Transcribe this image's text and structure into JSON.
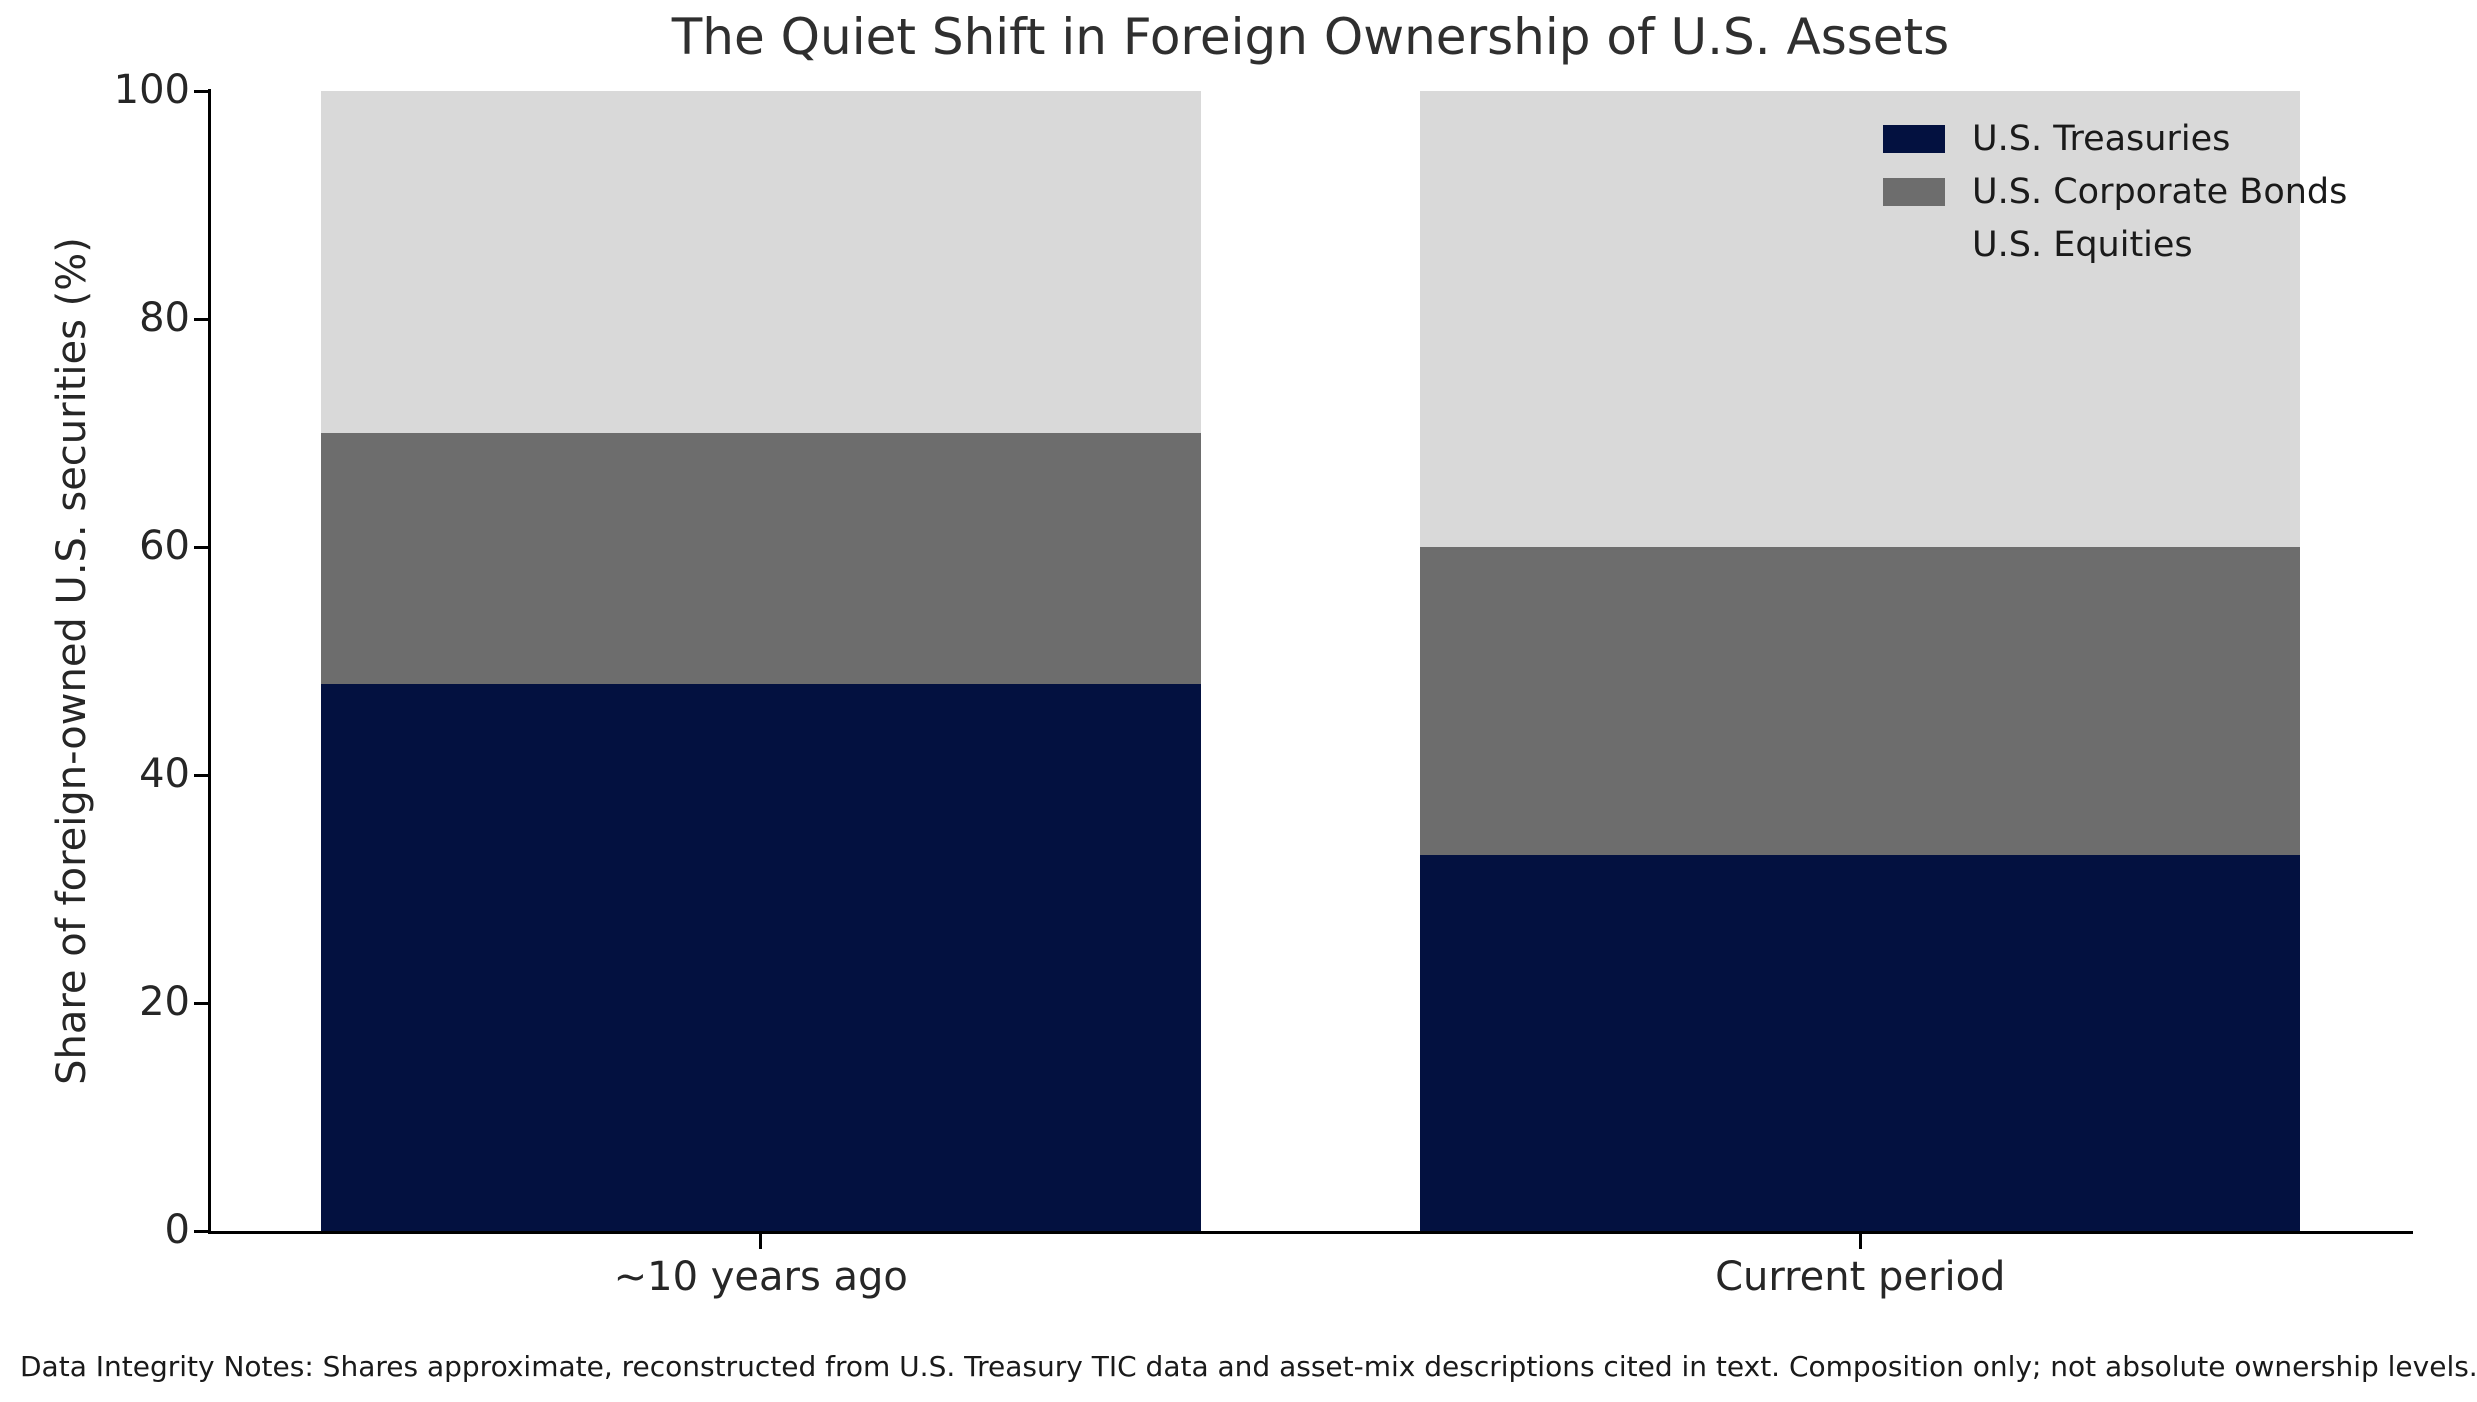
{
  "figure": {
    "footnote": "Data Integrity Notes: Shares approximate, reconstructed from U.S. Treasury TIC data and asset-mix descriptions cited in text. Composition only; not absolute ownership levels."
  },
  "chart_data": {
    "type": "bar",
    "stacked": true,
    "title": "The Quiet Shift in Foreign Ownership of U.S. Assets",
    "categories": [
      "~10 years ago",
      "Current period"
    ],
    "series": [
      {
        "name": "U.S. Treasuries",
        "color": "#031140",
        "values": [
          48,
          33
        ]
      },
      {
        "name": "U.S. Corporate Bonds",
        "color": "#6d6d6d",
        "values": [
          22,
          27
        ]
      },
      {
        "name": "U.S. Equities",
        "color": "#d9d9d9",
        "values": [
          30,
          40
        ]
      }
    ],
    "xlabel": "",
    "ylabel": "Share of foreign-owned U.S. securities (%)",
    "ylim": [
      0,
      100
    ],
    "yticks": [
      0,
      20,
      40,
      60,
      80,
      100
    ],
    "grid": false,
    "legend_position": "upper right",
    "spines": [
      "left",
      "bottom"
    ],
    "text_color": "#262626",
    "background_color": "#ffffff"
  }
}
